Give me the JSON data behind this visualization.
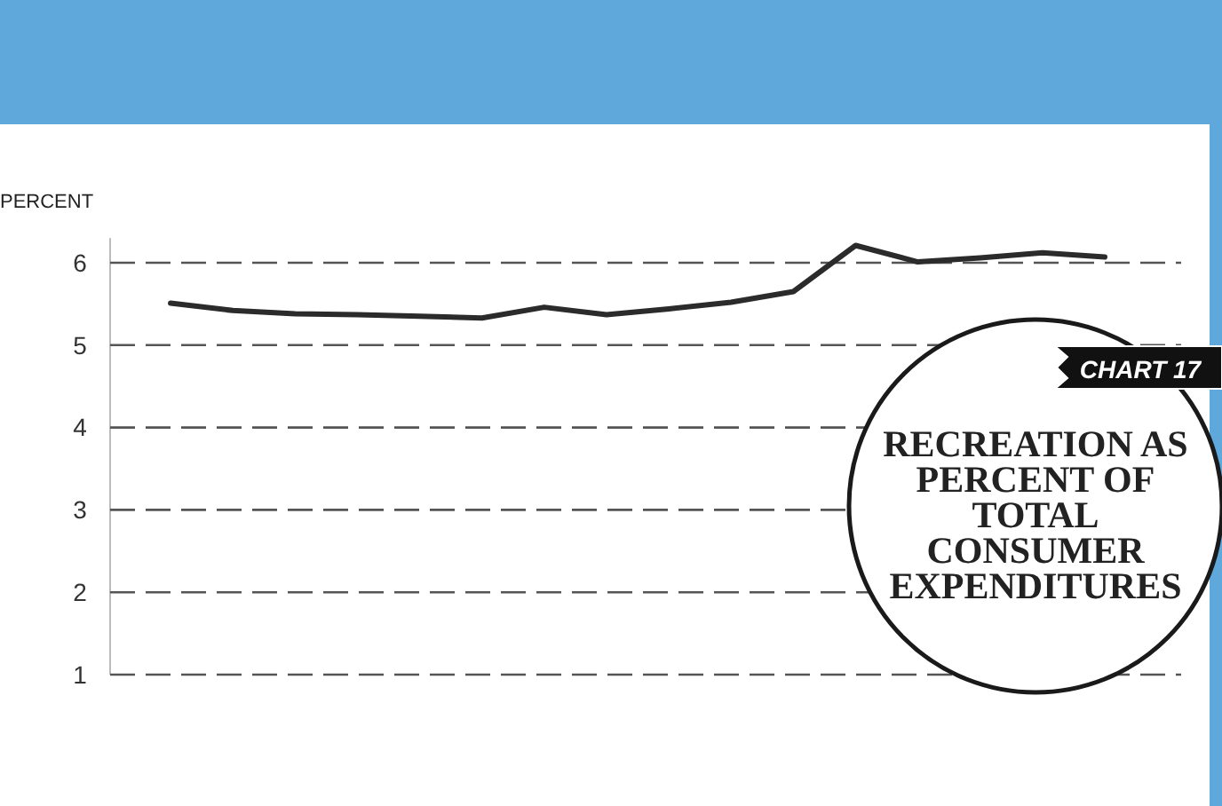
{
  "chart_data": {
    "type": "line",
    "title": "RECREATION AS PERCENT OF TOTAL CONSUMER EXPENDITURES",
    "subtitle": "CHART 17",
    "ylabel": "PERCENT",
    "categories": [
      null,
      null,
      null,
      null,
      null,
      null,
      null,
      null,
      null,
      null,
      null,
      null,
      null,
      null,
      null,
      null
    ],
    "series": [
      {
        "color": "#2b2b2b",
        "values": [
          5.51,
          5.42,
          5.38,
          5.37,
          5.35,
          5.33,
          5.46,
          5.37,
          5.44,
          5.52,
          5.65,
          6.21,
          6.01,
          6.06,
          6.12,
          6.07
        ]
      }
    ],
    "ylim": [
      1,
      6.3
    ],
    "yticks": [
      1,
      2,
      3,
      4,
      5,
      6
    ],
    "grid": "y"
  }
}
